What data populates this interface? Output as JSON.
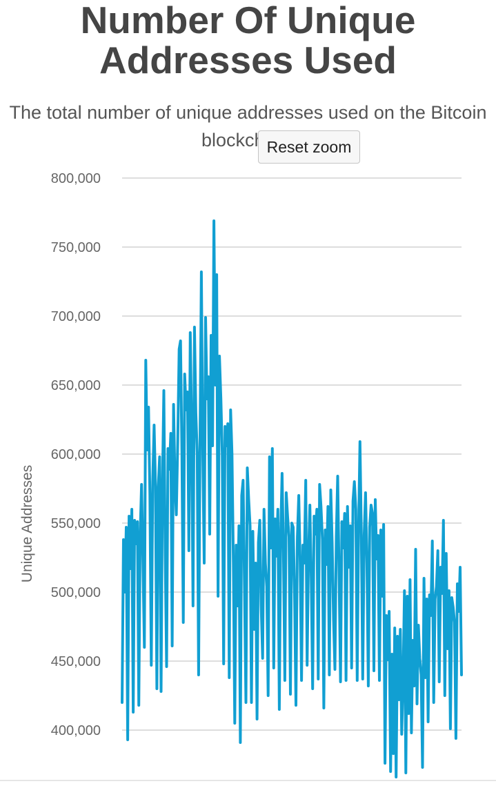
{
  "header": {
    "title_line1": "Number Of Unique",
    "title_line2": "Addresses Used",
    "subtitle_line1": "The total number of unique addresses used on the Bitcoin",
    "subtitle_line2": "blockchain."
  },
  "controls": {
    "reset_zoom_label": "Reset zoom"
  },
  "colors": {
    "series": "#119fd2",
    "grid": "#dddddd",
    "axis_text": "#666666",
    "title": "#454545"
  },
  "chart_data": {
    "type": "line",
    "title": "Number Of Unique Addresses Used",
    "subtitle": "The total number of unique addresses used on the Bitcoin blockchain.",
    "ylabel": "Unique Addresses",
    "xlabel": "",
    "ylim": [
      380000,
      800000
    ],
    "yticks": [
      400000,
      450000,
      500000,
      550000,
      600000,
      650000,
      700000,
      750000,
      800000
    ],
    "ytick_labels": [
      "400,000",
      "450,000",
      "500,000",
      "550,000",
      "600,000",
      "650,000",
      "700,000",
      "750,000",
      "800,000"
    ],
    "grid": true,
    "legend": "none",
    "series": [
      {
        "values": [
          420000,
          538000,
          500000,
          547000,
          393000,
          555000,
          517000,
          560000,
          413000,
          552000,
          535000,
          551000,
          418000,
          542000,
          578000,
          522000,
          460000,
          668000,
          603000,
          634000,
          570000,
          447000,
          580000,
          621000,
          577000,
          430000,
          576000,
          598000,
          428000,
          578000,
          646000,
          527000,
          446000,
          604000,
          589000,
          615000,
          461000,
          636000,
          580000,
          556000,
          610000,
          676000,
          682000,
          600000,
          478000,
          658000,
          632000,
          645000,
          530000,
          688000,
          620000,
          490000,
          692000,
          630000,
          600000,
          440000,
          607000,
          732000,
          600000,
          521000,
          699000,
          640000,
          656000,
          542000,
          686000,
          606000,
          769000,
          650000,
          730000,
          497000,
          671000,
          640000,
          600000,
          448000,
          620000,
          606000,
          622000,
          438000,
          632000,
          600000,
          521000,
          405000,
          534000,
          490000,
          548000,
          391000,
          570000,
          581000,
          505000,
          420000,
          590000,
          567000,
          548000,
          420000,
          544000,
          473000,
          521000,
          408000,
          536000,
          552000,
          490000,
          452000,
          560000,
          521000,
          504000,
          425000,
          598000,
          532000,
          604000,
          445000,
          553000,
          526000,
          560000,
          415000,
          542000,
          586000,
          528000,
          436000,
          572000,
          554000,
          540000,
          426000,
          550000,
          547000,
          498000,
          418000,
          540000,
          570000,
          522000,
          436000,
          534000,
          521000,
          581000,
          447000,
          525000,
          563000,
          509000,
          430000,
          555000,
          542000,
          560000,
          437000,
          578000,
          562000,
          538000,
          416000,
          545000,
          520000,
          562000,
          440000,
          574000,
          536000,
          480000,
          444000,
          540000,
          584000,
          510000,
          435000,
          551000,
          532000,
          557000,
          436000,
          562000,
          518000,
          548000,
          445000,
          566000,
          580000,
          560000,
          436000,
          546000,
          609000,
          542000,
          437000,
          541000,
          572000,
          521000,
          432000,
          547000,
          563000,
          557000,
          443000,
          567000,
          524000,
          541000,
          436000,
          545000,
          497000,
          549000,
          376000,
          483000,
          451000,
          486000,
          370000,
          455000,
          383000,
          474000,
          366000,
          468000,
          422000,
          473000,
          397000,
          436000,
          501000,
          369000,
          497000,
          412000,
          509000,
          398000,
          465000,
          432000,
          531000,
          419000,
          476000,
          452000,
          440000,
          373000,
          510000,
          438000,
          495000,
          406000,
          498000,
          483000,
          537000,
          420000,
          495000,
          504000,
          530000,
          435000,
          518000,
          499000,
          552000,
          425000,
          528000,
          459000,
          501000,
          401000,
          496000,
          489000,
          478000,
          394000,
          506000,
          486000,
          518000,
          440000
        ]
      }
    ]
  }
}
